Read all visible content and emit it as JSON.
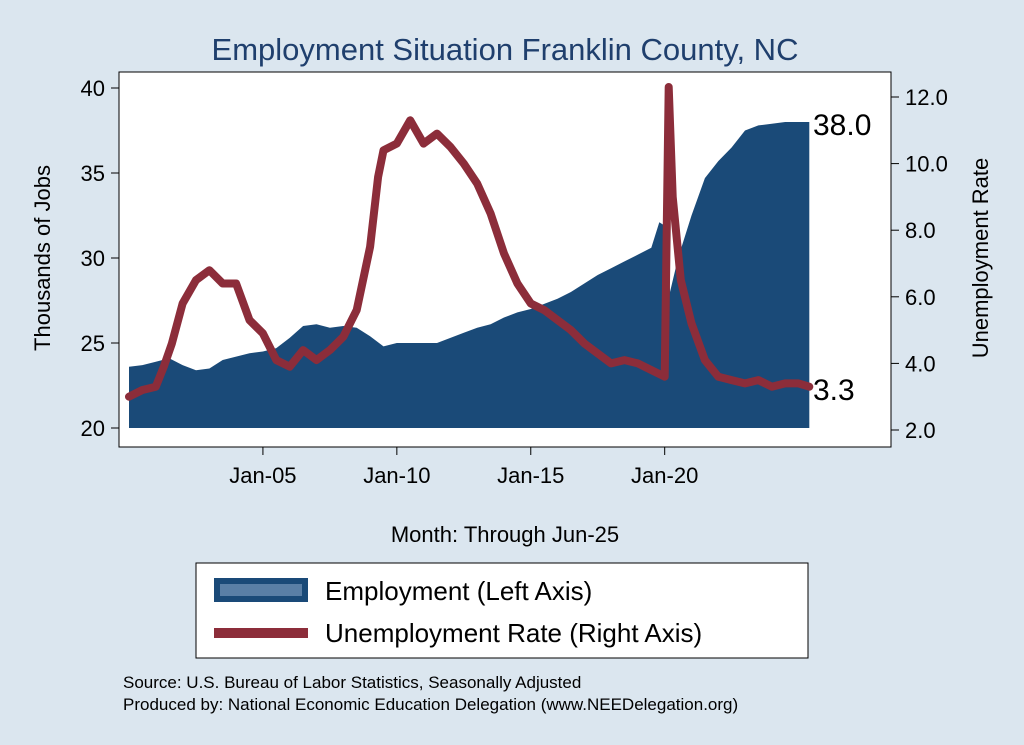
{
  "chart_data": {
    "type": "area+line",
    "title": "Employment Situation Franklin  County, NC",
    "xlabel": "Month: Through Jun-25",
    "ylabel_left": "Thousands of Jobs",
    "ylabel_right": "Unemployment Rate",
    "x_ticks": [
      "Jan-05",
      "Jan-10",
      "Jan-15",
      "Jan-20"
    ],
    "y_left_ticks": [
      "20",
      "25",
      "30",
      "35",
      "40"
    ],
    "y_right_ticks": [
      "2.0",
      "4.0",
      "6.0",
      "8.0",
      "10.0",
      "12.0"
    ],
    "ylim_left": [
      20,
      41
    ],
    "ylim_right": [
      1.5,
      12.5
    ],
    "xlim": [
      2000.0,
      2025.5
    ],
    "legend_position": "bottom",
    "colors": {
      "employment": "#1a4a78",
      "unemployment": "#8c2d3a",
      "background": "#dbe6ef",
      "plot_bg": "#ffffff"
    },
    "series": [
      {
        "name": "Employment (Left Axis)",
        "axis": "left",
        "style": "area",
        "points": [
          [
            2000.0,
            23.6
          ],
          [
            2000.5,
            23.7
          ],
          [
            2001.0,
            23.9
          ],
          [
            2001.5,
            24.1
          ],
          [
            2002.0,
            23.7
          ],
          [
            2002.5,
            23.4
          ],
          [
            2003.0,
            23.5
          ],
          [
            2003.5,
            24.0
          ],
          [
            2004.0,
            24.2
          ],
          [
            2004.5,
            24.4
          ],
          [
            2005.0,
            24.5
          ],
          [
            2005.5,
            24.7
          ],
          [
            2006.0,
            25.3
          ],
          [
            2006.5,
            26.0
          ],
          [
            2007.0,
            26.1
          ],
          [
            2007.5,
            25.9
          ],
          [
            2008.0,
            26.0
          ],
          [
            2008.5,
            25.9
          ],
          [
            2009.0,
            25.4
          ],
          [
            2009.5,
            24.8
          ],
          [
            2010.0,
            25.0
          ],
          [
            2010.5,
            25.0
          ],
          [
            2011.0,
            25.0
          ],
          [
            2011.5,
            25.0
          ],
          [
            2012.0,
            25.3
          ],
          [
            2012.5,
            25.6
          ],
          [
            2013.0,
            25.9
          ],
          [
            2013.5,
            26.1
          ],
          [
            2014.0,
            26.5
          ],
          [
            2014.5,
            26.8
          ],
          [
            2015.0,
            27.0
          ],
          [
            2015.5,
            27.3
          ],
          [
            2016.0,
            27.6
          ],
          [
            2016.5,
            28.0
          ],
          [
            2017.0,
            28.5
          ],
          [
            2017.5,
            29.0
          ],
          [
            2018.0,
            29.4
          ],
          [
            2018.5,
            29.8
          ],
          [
            2019.0,
            30.2
          ],
          [
            2019.5,
            30.6
          ],
          [
            2019.8,
            32.1
          ],
          [
            2020.1,
            31.8
          ],
          [
            2020.2,
            28.0
          ],
          [
            2020.5,
            30.0
          ],
          [
            2021.0,
            32.5
          ],
          [
            2021.5,
            34.7
          ],
          [
            2022.0,
            35.7
          ],
          [
            2022.5,
            36.5
          ],
          [
            2023.0,
            37.5
          ],
          [
            2023.5,
            37.8
          ],
          [
            2024.0,
            37.9
          ],
          [
            2024.5,
            38.0
          ],
          [
            2025.0,
            38.0
          ],
          [
            2025.4,
            38.0
          ]
        ]
      },
      {
        "name": "Unemployment Rate (Right Axis)",
        "axis": "right",
        "style": "line",
        "points": [
          [
            2000.0,
            3.0
          ],
          [
            2000.5,
            3.2
          ],
          [
            2001.0,
            3.3
          ],
          [
            2001.3,
            3.9
          ],
          [
            2001.6,
            4.6
          ],
          [
            2002.0,
            5.8
          ],
          [
            2002.5,
            6.5
          ],
          [
            2003.0,
            6.8
          ],
          [
            2003.5,
            6.4
          ],
          [
            2004.0,
            6.4
          ],
          [
            2004.5,
            5.3
          ],
          [
            2005.0,
            4.9
          ],
          [
            2005.5,
            4.1
          ],
          [
            2006.0,
            3.9
          ],
          [
            2006.5,
            4.4
          ],
          [
            2007.0,
            4.1
          ],
          [
            2007.5,
            4.4
          ],
          [
            2008.0,
            4.8
          ],
          [
            2008.5,
            5.6
          ],
          [
            2009.0,
            7.5
          ],
          [
            2009.3,
            9.6
          ],
          [
            2009.5,
            10.4
          ],
          [
            2010.0,
            10.6
          ],
          [
            2010.5,
            11.3
          ],
          [
            2011.0,
            10.6
          ],
          [
            2011.5,
            10.9
          ],
          [
            2012.0,
            10.5
          ],
          [
            2012.5,
            10.0
          ],
          [
            2013.0,
            9.4
          ],
          [
            2013.5,
            8.5
          ],
          [
            2014.0,
            7.3
          ],
          [
            2014.5,
            6.4
          ],
          [
            2015.0,
            5.8
          ],
          [
            2015.5,
            5.6
          ],
          [
            2016.0,
            5.3
          ],
          [
            2016.5,
            5.0
          ],
          [
            2017.0,
            4.6
          ],
          [
            2017.5,
            4.3
          ],
          [
            2018.0,
            4.0
          ],
          [
            2018.5,
            4.1
          ],
          [
            2019.0,
            4.0
          ],
          [
            2019.5,
            3.8
          ],
          [
            2020.0,
            3.6
          ],
          [
            2020.15,
            12.3
          ],
          [
            2020.3,
            9.0
          ],
          [
            2020.6,
            6.5
          ],
          [
            2021.0,
            5.2
          ],
          [
            2021.5,
            4.1
          ],
          [
            2022.0,
            3.6
          ],
          [
            2022.5,
            3.5
          ],
          [
            2023.0,
            3.4
          ],
          [
            2023.5,
            3.5
          ],
          [
            2024.0,
            3.3
          ],
          [
            2024.5,
            3.4
          ],
          [
            2025.0,
            3.4
          ],
          [
            2025.4,
            3.3
          ]
        ]
      }
    ],
    "end_labels": {
      "employment": "38.0",
      "unemployment": "3.3"
    }
  },
  "source": {
    "line1": "Source: U.S. Bureau of Labor Statistics, Seasonally Adjusted",
    "line2": "Produced by: National Economic Education Delegation (www.NEEDelegation.org)"
  }
}
